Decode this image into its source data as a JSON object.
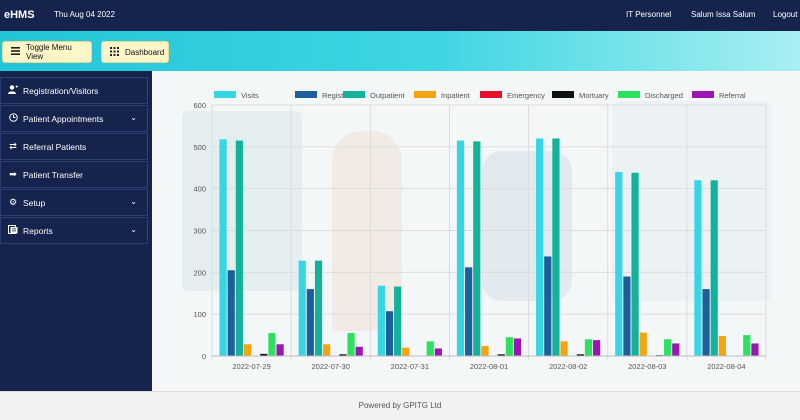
{
  "header": {
    "brand": "eHMS",
    "date": "Thu Aug 04 2022",
    "role": "IT Personnel",
    "user": "Salum Issa Salum",
    "logout": "Logout"
  },
  "toolbar": {
    "toggle_label": "Toggle Menu View",
    "dashboard_label": "Dashboard"
  },
  "sidebar": {
    "items": [
      {
        "label": "Registration/Visitors",
        "icon": "user-plus-icon",
        "chevron": false
      },
      {
        "label": "Patient Appointments",
        "icon": "clock-icon",
        "chevron": true
      },
      {
        "label": "Referral Patients",
        "icon": "exchange-icon",
        "chevron": false
      },
      {
        "label": "Patient Transfer",
        "icon": "arrow-right-icon",
        "chevron": false
      },
      {
        "label": "Setup",
        "icon": "gear-icon",
        "chevron": true
      },
      {
        "label": "Reports",
        "icon": "reports-icon",
        "chevron": true
      }
    ]
  },
  "footer": {
    "text": "Powered by GPITG Ltd"
  },
  "chart_data": {
    "type": "bar",
    "categories": [
      "2022-07-29",
      "2022-07-30",
      "2022-07-31",
      "2022-08-01",
      "2022-08-02",
      "2022-08-03",
      "2022-08-04"
    ],
    "ylim": [
      0,
      600
    ],
    "yticks": [
      0,
      100,
      200,
      300,
      400,
      500,
      600
    ],
    "grid": true,
    "legend_position": "top",
    "series": [
      {
        "name": "Visits",
        "color": "#36d6e3",
        "values": [
          518,
          228,
          168,
          515,
          520,
          440,
          420
        ]
      },
      {
        "name": "Registration",
        "color": "#1f5f99",
        "values": [
          205,
          160,
          107,
          212,
          238,
          190,
          160
        ]
      },
      {
        "name": "Outpatient",
        "color": "#12b39a",
        "values": [
          515,
          228,
          166,
          513,
          520,
          438,
          420
        ]
      },
      {
        "name": "Inpatient",
        "color": "#f5a30e",
        "values": [
          28,
          28,
          20,
          24,
          35,
          56,
          48
        ]
      },
      {
        "name": "Emergency",
        "color": "#e8112d",
        "values": [
          0,
          0,
          0,
          0,
          0,
          0,
          0
        ]
      },
      {
        "name": "Mortuary",
        "color": "#111111",
        "values": [
          5,
          4,
          0,
          4,
          4,
          2,
          1
        ]
      },
      {
        "name": "Discharged",
        "color": "#2ee05f",
        "values": [
          55,
          55,
          35,
          45,
          40,
          40,
          50
        ]
      },
      {
        "name": "Referral",
        "color": "#9b17b5",
        "values": [
          28,
          22,
          18,
          42,
          38,
          30,
          30
        ]
      }
    ]
  }
}
